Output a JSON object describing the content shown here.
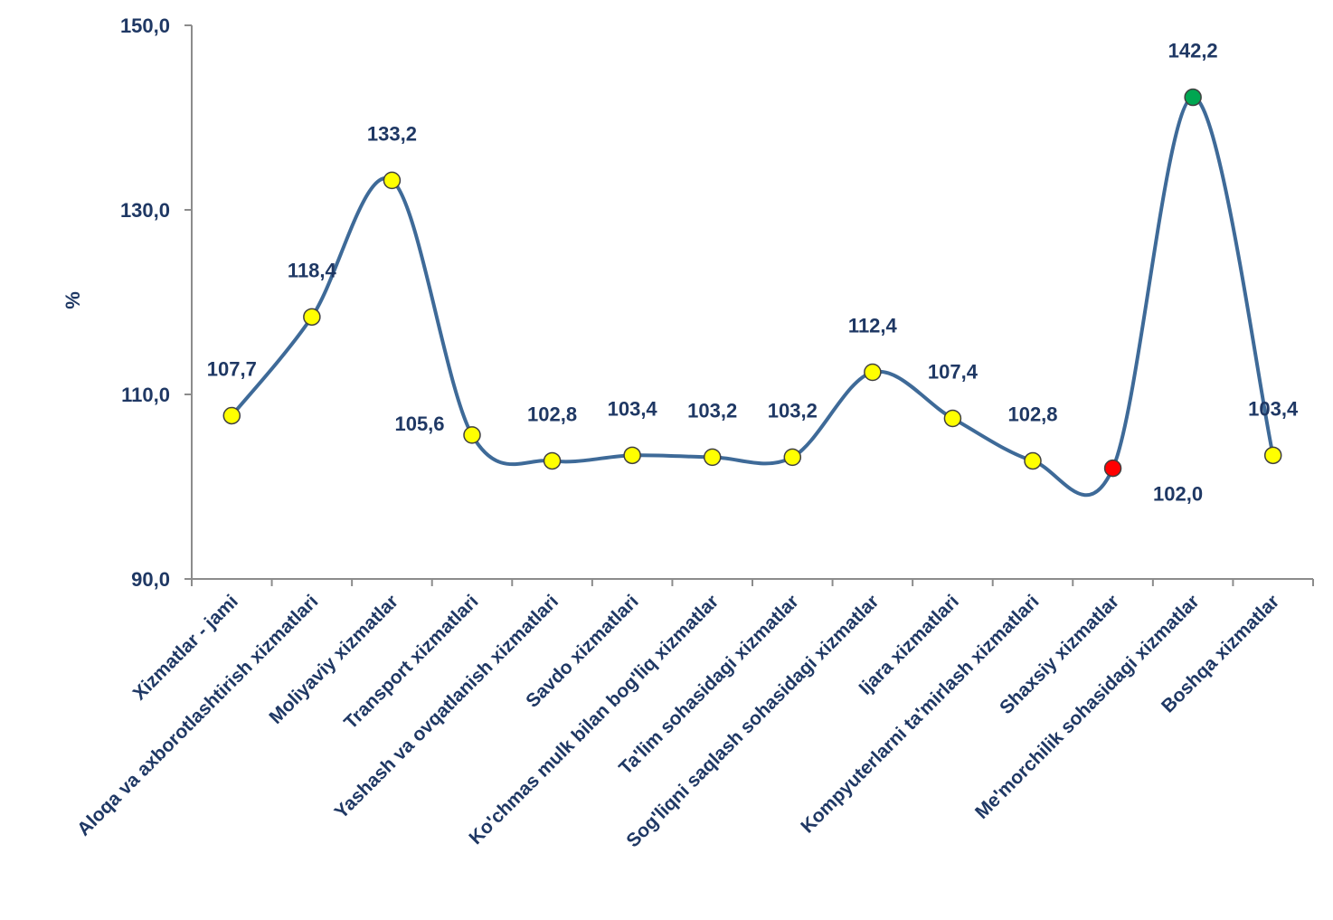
{
  "chart_data": {
    "type": "line",
    "title": "",
    "xlabel": "",
    "ylabel": "%",
    "ylim": [
      90,
      150
    ],
    "yticks": [
      "90,0",
      "110,0",
      "130,0",
      "150,0"
    ],
    "ytick_values": [
      90,
      110,
      130,
      150
    ],
    "grid": false,
    "smooth": true,
    "line_color": "#3e6a98",
    "categories": [
      "Xizmatlar - jami",
      "Aloqa va axborotlashtirish  xizmatlari",
      "Moliyaviy xizmatlar",
      "Transport xizmatlari",
      "Yashash va ovqatlanish  xizmatlari",
      "Savdo xizmatlari",
      "Ko'chmas mulk bilan bog'liq xizmatlar",
      "Ta'lim sohasidagi  xizmatlar",
      "Sog'liqni saqlash sohasidagi  xizmatlar",
      "Ijara xizmatlari",
      "Kompyuterlarni ta'mirlash xizmatlari",
      "Shaxsiy xizmatlar",
      "Me'morchilik sohasidagi  xizmatlar",
      "Boshqa xizmatlar"
    ],
    "values": [
      107.7,
      118.4,
      133.2,
      105.6,
      102.8,
      103.4,
      103.2,
      103.2,
      112.4,
      107.4,
      102.8,
      102.0,
      142.2,
      103.4
    ],
    "value_labels": [
      "107,7",
      "118,4",
      "133,2",
      "105,6",
      "102,8",
      "103,4",
      "103,2",
      "103,2",
      "112,4",
      "107,4",
      "102,8",
      "102,0",
      "142,2",
      "103,4"
    ],
    "marker_colors": [
      "#ffff00",
      "#ffff00",
      "#ffff00",
      "#ffff00",
      "#ffff00",
      "#ffff00",
      "#ffff00",
      "#ffff00",
      "#ffff00",
      "#ffff00",
      "#ffff00",
      "#ff0000",
      "#00a651",
      "#ffff00"
    ],
    "label_positions": [
      "above",
      "above",
      "above",
      "left",
      "above",
      "above",
      "above",
      "above",
      "above",
      "above",
      "above",
      "below",
      "above",
      "above"
    ]
  }
}
